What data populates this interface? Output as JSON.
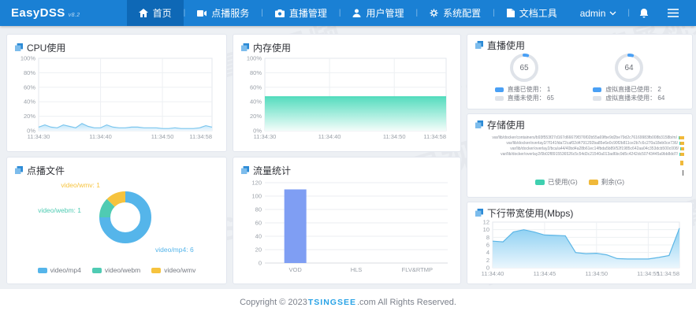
{
  "brand": {
    "name": "EasyDSS",
    "version": "v8.2"
  },
  "nav": {
    "items": [
      {
        "label": "首页",
        "icon": "home",
        "active": true
      },
      {
        "label": "点播服务",
        "icon": "video",
        "active": false
      },
      {
        "label": "直播管理",
        "icon": "camera",
        "active": false
      },
      {
        "label": "用户管理",
        "icon": "user",
        "active": false
      },
      {
        "label": "系统配置",
        "icon": "gear",
        "active": false
      },
      {
        "label": "文档工具",
        "icon": "document",
        "active": false
      }
    ],
    "user": "admin"
  },
  "panels": {
    "cpu": {
      "title": "CPU使用"
    },
    "memory": {
      "title": "内存使用"
    },
    "live": {
      "title": "直播使用"
    },
    "storage": {
      "title": "存储使用"
    },
    "bandwidth": {
      "title": "下行带宽使用(Mbps)"
    },
    "vod_files": {
      "title": "点播文件"
    },
    "traffic": {
      "title": "流量统计"
    }
  },
  "chart_data": [
    {
      "id": "cpu",
      "type": "area",
      "title": "CPU使用",
      "yticks": [
        "0%",
        "20%",
        "40%",
        "60%",
        "80%",
        "100%"
      ],
      "ymax": 100,
      "x_ticks": [
        {
          "label": "11:34:30",
          "pos": 0
        },
        {
          "label": "11:34:40",
          "pos": 0.357
        },
        {
          "label": "11:34:50",
          "pos": 0.714
        },
        {
          "label": "11:34:58",
          "pos": 1
        }
      ],
      "values": [
        5,
        8,
        5,
        4,
        8,
        6,
        4,
        10,
        6,
        4,
        4,
        8,
        5,
        4,
        4,
        5,
        5,
        4,
        4,
        4,
        3,
        3,
        4,
        3,
        3,
        3,
        4,
        7,
        5
      ],
      "line_color": "#7cc6ee",
      "fill_top": "#b9e2f8",
      "fill_bottom": "#eef8fe"
    },
    {
      "id": "memory",
      "type": "area",
      "title": "内存使用",
      "yticks": [
        "0%",
        "20%",
        "40%",
        "60%",
        "80%",
        "100%"
      ],
      "ymax": 100,
      "x_ticks": [
        {
          "label": "11:34:30",
          "pos": 0
        },
        {
          "label": "11:34:40",
          "pos": 0.357
        },
        {
          "label": "11:34:50",
          "pos": 0.714
        },
        {
          "label": "11:34:58",
          "pos": 1
        }
      ],
      "values": [
        47,
        47
      ],
      "line_color": "#43d8b7",
      "fill_top": "#55dcbe",
      "fill_bottom": "#f2fdfa"
    },
    {
      "id": "bandwidth",
      "type": "area",
      "title": "下行带宽使用(Mbps)",
      "yticks": [
        "0",
        "2",
        "4",
        "6",
        "8",
        "10",
        "12"
      ],
      "ymax": 12,
      "x_ticks": [
        {
          "label": "11:34:40",
          "pos": 0
        },
        {
          "label": "11:34:45",
          "pos": 0.278
        },
        {
          "label": "11:34:50",
          "pos": 0.556
        },
        {
          "label": "11:34:55",
          "pos": 0.833
        },
        {
          "label": "11:34:58",
          "pos": 1
        }
      ],
      "values": [
        7,
        6.8,
        9.4,
        10,
        9.4,
        8.6,
        8.5,
        8.4,
        4,
        3.7,
        3.8,
        3.4,
        2.4,
        2.3,
        2.3,
        2.3,
        2.7,
        3.2,
        10.4
      ],
      "line_color": "#5cb6e6",
      "fill_top": "#8ed0f2",
      "fill_bottom": "#eaf6fd"
    },
    {
      "id": "vod_files",
      "type": "donut",
      "title": "点播文件",
      "slices": [
        {
          "label": "video/mp4",
          "value": 6,
          "color": "#55b5ea",
          "callout": "video/mp4: 6"
        },
        {
          "label": "video/webm",
          "value": 1,
          "color": "#4fcbb3",
          "callout": "video/webm: 1"
        },
        {
          "label": "video/wmv",
          "value": 1,
          "color": "#f6c33e",
          "callout": "video/wmv: 1"
        }
      ],
      "legend": [
        "video/mp4",
        "video/webm",
        "video/wmv"
      ]
    },
    {
      "id": "traffic",
      "type": "bar",
      "title": "流量统计",
      "categories": [
        "VOD",
        "HLS",
        "FLV&RTMP"
      ],
      "values": [
        110,
        0,
        0
      ],
      "yticks": [
        "0",
        "20",
        "40",
        "60",
        "80",
        "100",
        "120"
      ],
      "ymax": 120,
      "bar_color": "#7f9ef3"
    },
    {
      "id": "storage",
      "type": "hbar",
      "title": "存储使用",
      "paths": [
        "/var/lib/docker/containers/b93f553f27d167d66679f376f02b55a69fbe9d2be79d2c76169983fb008b3158b/m",
        "/var/lib/docker/overlay2/7f141fda72caf02d4791292ba85e6e0c90f2b811ce2b7c6c270a18eb0ce736",
        "/var/lib/docker/overlay2/bca/a44/40bd4a28b61ec14fbda5b89/52f1985c642aa04c353dcb500c008",
        "/var/lib/docker/overlay2/0b02f8915536526c5c54d3c21540a013ad6bc9d5c4242dc50743445a9bb8dd7"
      ],
      "bars": [
        {
          "used": 1,
          "free": 6
        },
        {
          "used": 1,
          "free": 5
        },
        {
          "used": 1,
          "free": 4
        },
        {
          "used": 1,
          "free": 5
        }
      ],
      "legend": [
        {
          "label": "已使用(G)",
          "color": "#3fd0b0"
        },
        {
          "label": "剩余(G)",
          "color": "#f0b93a"
        }
      ]
    },
    {
      "id": "live_gauges",
      "type": "gauge",
      "title": "直播使用",
      "gauges": [
        {
          "center_value": "65",
          "used_label": "直播已使用",
          "used_value": "1",
          "unused_label": "直播未使用",
          "unused_value": "65",
          "used_color": "#4aa0f5",
          "unused_color": "#dfe3e9",
          "used_frac": 0.015
        },
        {
          "center_value": "64",
          "used_label": "虚拟直播已使用",
          "used_value": "2",
          "unused_label": "虚拟直播未使用",
          "unused_value": "64",
          "used_color": "#4aa0f5",
          "unused_color": "#dfe3e9",
          "used_frac": 0.03
        }
      ]
    }
  ],
  "watermark": "TSINGSEE 青犀视频",
  "footer": {
    "pre": "Copyright © 2023 ",
    "brand": "TSINGSEE",
    "post": ".com All Rights Reserved."
  }
}
